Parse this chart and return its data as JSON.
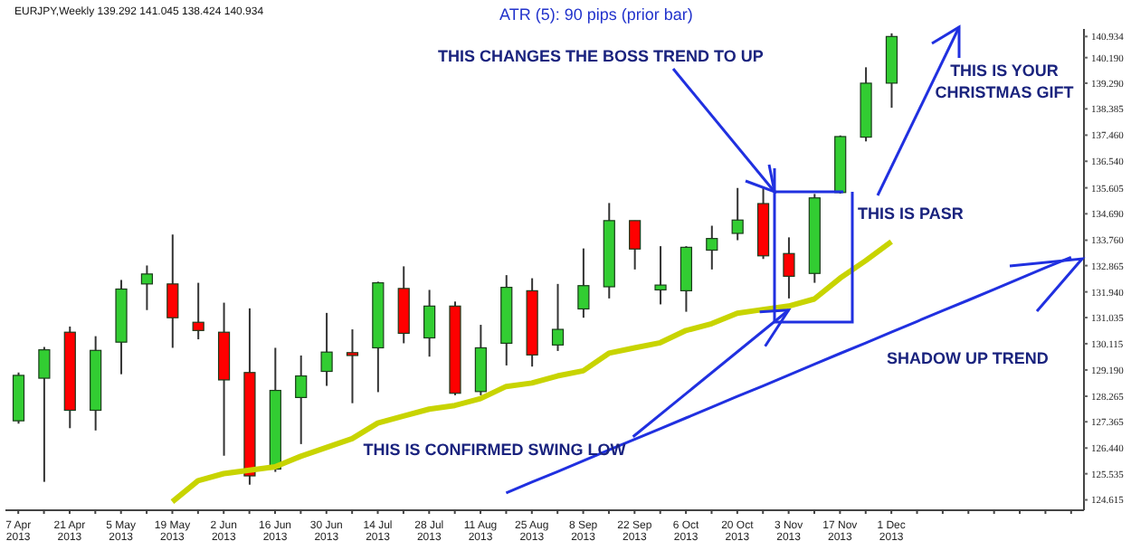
{
  "chart_data": {
    "type": "candlestick",
    "title": "EURJPY,Weekly  139.292 141.045 138.424 140.934",
    "categories": [
      "7 Apr 2013",
      null,
      "21 Apr 2013",
      null,
      "5 May 2013",
      null,
      "19 May 2013",
      null,
      "2 Jun 2013",
      null,
      "16 Jun 2013",
      null,
      "30 Jun 2013",
      null,
      "14 Jul 2013",
      null,
      "28 Jul 2013",
      null,
      "11 Aug 2013",
      null,
      "25 Aug 2013",
      null,
      "8 Sep 2013",
      null,
      "22 Sep 2013",
      null,
      "6 Oct 2013",
      null,
      "20 Oct 2013",
      null,
      "3 Nov 2013",
      null,
      "17 Nov 2013",
      null,
      "1 Dec 2013",
      null,
      null,
      null,
      null,
      null,
      null,
      null
    ],
    "ohlc": [
      [
        127.4,
        129.1,
        127.3,
        129.0
      ],
      [
        128.9,
        130.0,
        125.25,
        129.9
      ],
      [
        130.52,
        130.72,
        127.14,
        127.77
      ],
      [
        127.77,
        130.38,
        127.06,
        129.88
      ],
      [
        130.17,
        132.36,
        129.04,
        132.04
      ],
      [
        132.22,
        132.87,
        131.3,
        132.57
      ],
      [
        132.22,
        133.96,
        129.97,
        131.03
      ],
      [
        130.87,
        132.26,
        130.27,
        130.58
      ],
      [
        130.52,
        131.56,
        126.17,
        128.84
      ],
      [
        129.1,
        131.36,
        125.15,
        125.46
      ],
      [
        125.7,
        129.97,
        125.6,
        128.47
      ],
      [
        128.22,
        129.7,
        126.58,
        128.98
      ],
      [
        129.14,
        131.2,
        128.63,
        129.82
      ],
      [
        129.8,
        130.62,
        128.02,
        129.7
      ],
      [
        129.97,
        132.3,
        128.41,
        132.26
      ],
      [
        132.06,
        132.84,
        130.13,
        130.48
      ],
      [
        130.32,
        132.01,
        129.66,
        131.44
      ],
      [
        131.44,
        131.6,
        128.3,
        128.37
      ],
      [
        128.43,
        130.78,
        128.3,
        129.97
      ],
      [
        130.13,
        132.53,
        129.35,
        132.1
      ],
      [
        131.98,
        132.42,
        129.31,
        129.72
      ],
      [
        130.07,
        132.22,
        129.86,
        130.62
      ],
      [
        131.34,
        133.47,
        131.03,
        132.16
      ],
      [
        132.12,
        135.07,
        131.71,
        134.45
      ],
      [
        134.45,
        134.45,
        132.73,
        133.45
      ],
      [
        132.01,
        133.55,
        131.5,
        132.18
      ],
      [
        131.98,
        133.55,
        131.24,
        133.51
      ],
      [
        133.41,
        134.27,
        132.73,
        133.82
      ],
      [
        134.0,
        135.6,
        133.76,
        134.47
      ],
      [
        135.05,
        135.6,
        133.1,
        133.21
      ],
      [
        133.29,
        133.86,
        131.71,
        132.49
      ],
      [
        132.59,
        135.39,
        132.26,
        135.25
      ],
      [
        135.44,
        137.45,
        135.4,
        137.41
      ],
      [
        137.39,
        139.85,
        137.24,
        139.29
      ],
      [
        139.292,
        141.045,
        138.424,
        140.934
      ],
      null,
      null,
      null,
      null,
      null,
      null,
      null
    ],
    "colors": [
      "#32cd32",
      "#32cd32",
      "#ff0000",
      "#32cd32",
      "#32cd32",
      "#32cd32",
      "#ff0000",
      "#ff0000",
      "#ff0000",
      "#ff0000",
      "#32cd32",
      "#32cd32",
      "#32cd32",
      "#ff0000",
      "#32cd32",
      "#ff0000",
      "#32cd32",
      "#ff0000",
      "#32cd32",
      "#32cd32",
      "#ff0000",
      "#32cd32",
      "#32cd32",
      "#32cd32",
      "#ff0000",
      "#32cd32",
      "#32cd32",
      "#32cd32",
      "#32cd32",
      "#ff0000",
      "#ff0000",
      "#32cd32",
      "#32cd32",
      "#32cd32",
      "#32cd32",
      null,
      null,
      null,
      null,
      null,
      null,
      null
    ],
    "series": [
      {
        "type": "line",
        "color": "#c8d400",
        "values": [
          null,
          null,
          null,
          null,
          null,
          null,
          124.55,
          125.29,
          125.54,
          125.66,
          125.78,
          126.15,
          126.46,
          126.77,
          127.32,
          127.57,
          127.81,
          127.94,
          128.18,
          128.61,
          128.73,
          128.98,
          129.16,
          129.78,
          129.97,
          130.15,
          130.58,
          130.82,
          131.19,
          131.32,
          131.44,
          131.69,
          132.42,
          133.04,
          133.71,
          null,
          null,
          null,
          null,
          null,
          null,
          null
        ]
      },
      {
        "type": "line",
        "color": "#2030e0",
        "values": [
          null,
          null,
          null,
          null,
          null,
          null,
          null,
          null,
          null,
          null,
          null,
          null,
          null,
          null,
          null,
          null,
          null,
          null,
          null,
          124.86,
          125.24,
          125.61,
          125.99,
          126.37,
          126.75,
          127.12,
          127.5,
          127.88,
          128.26,
          128.63,
          129.01,
          129.39,
          129.77,
          130.14,
          130.52,
          130.9,
          131.28,
          131.65,
          132.03,
          132.41,
          132.79,
          133.16
        ]
      }
    ],
    "ylim": [
      124.25,
      141.2
    ],
    "yticks": [
      124.615,
      125.535,
      {
        "value": 126.44,
        "label": "126.440"
      },
      127.365,
      128.265,
      {
        "value": 129.19,
        "label": "129.190"
      },
      130.115,
      131.035,
      {
        "value": 131.94,
        "label": "131.940"
      },
      132.865,
      {
        "value": 133.76,
        "label": "133.760"
      },
      {
        "value": 134.69,
        "label": "134.690"
      },
      135.605,
      {
        "value": 136.54,
        "label": "136.540"
      },
      {
        "value": 137.46,
        "label": "137.460"
      },
      138.385,
      {
        "value": 139.29,
        "label": "139.290"
      },
      {
        "value": 140.19,
        "label": "140.190"
      },
      140.934
    ],
    "annotations": [
      "ATR (5): 90 pips (prior bar)",
      "THIS CHANGES THE BOSS TREND TO UP",
      "THIS IS YOUR CHRISTMAS GIFT",
      "THIS IS PASR",
      {
        "text": "THIS IS CONFIRMED SWING LOW",
        "x": "3 Nov 2013",
        "y": 131.3
      },
      "SHADOW UP TREND"
    ]
  }
}
